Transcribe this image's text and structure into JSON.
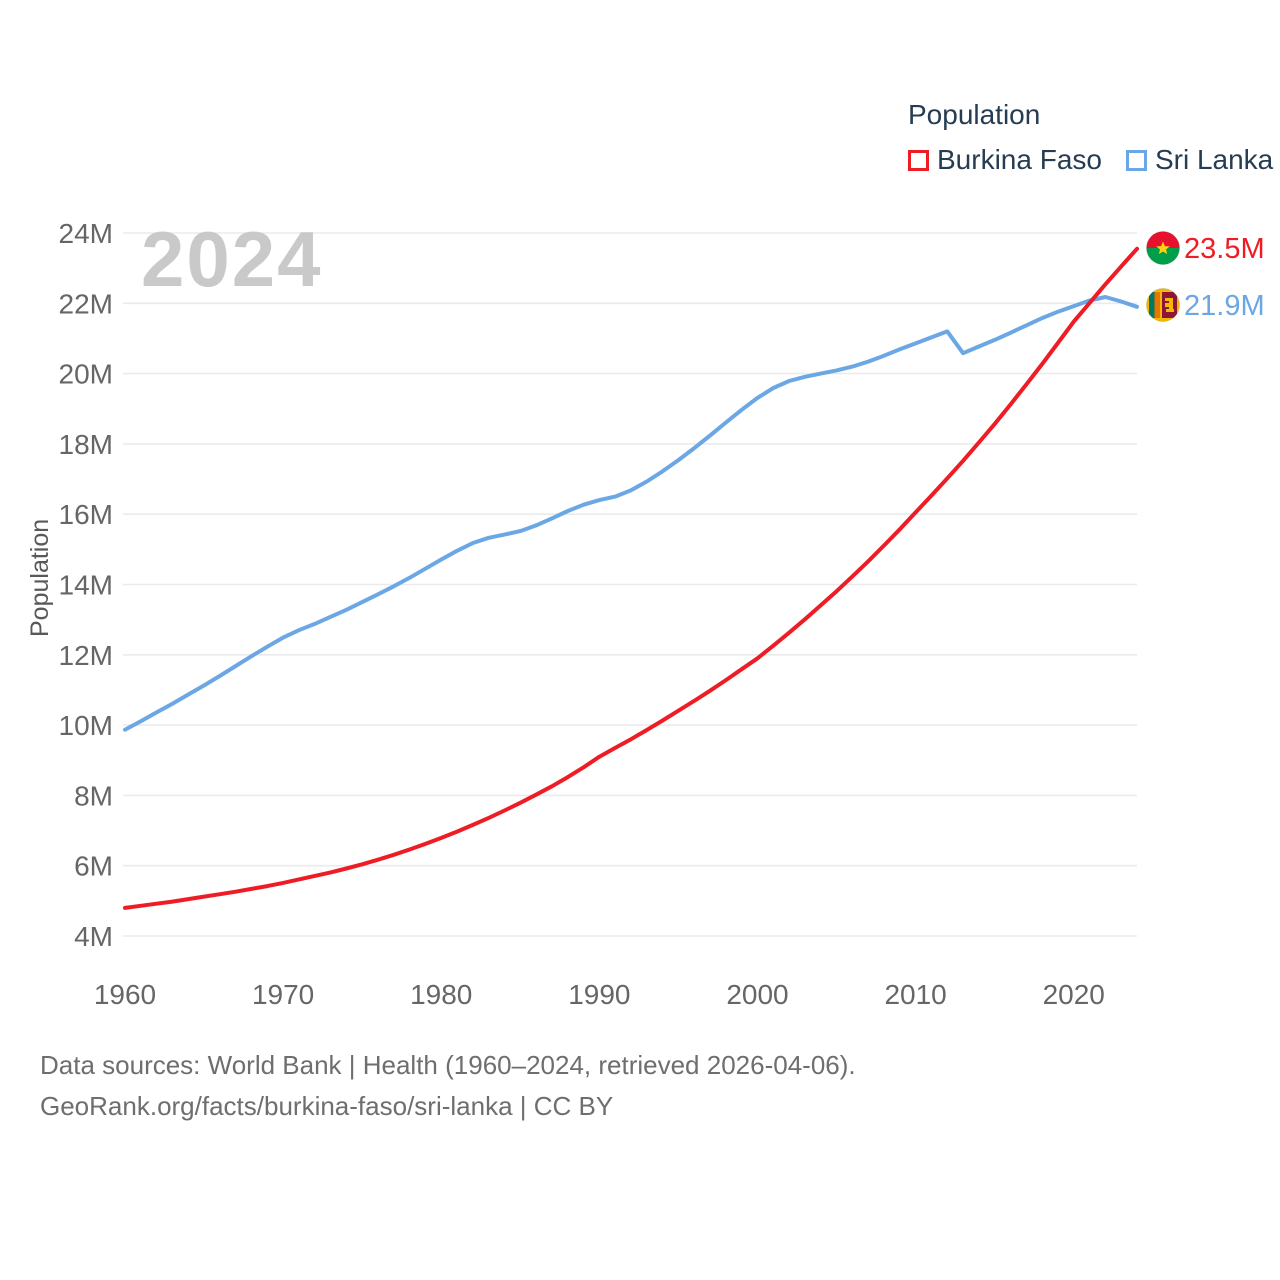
{
  "legend": {
    "title": "Population",
    "items": [
      {
        "label": "Burkina Faso",
        "color": "#ee1c25"
      },
      {
        "label": "Sri Lanka",
        "color": "#6ba7e5"
      }
    ]
  },
  "watermark_year": "2024",
  "y_axis_title": "Population",
  "end_labels": [
    {
      "series": "Burkina Faso",
      "value": "23.5M",
      "flag": "burkina-faso-flag"
    },
    {
      "series": "Sri Lanka",
      "value": "21.9M",
      "flag": "sri-lanka-flag"
    }
  ],
  "footer": {
    "line1": "Data sources: World Bank | Health (1960–2024, retrieved 2026-04-06).",
    "line2": "GeoRank.org/facts/burkina-faso/sri-lanka | CC BY"
  },
  "chart_data": {
    "type": "line",
    "title": "Population",
    "xlabel": "",
    "ylabel": "Population",
    "units": "millions",
    "xlim": [
      1960,
      2024
    ],
    "ylim": [
      4,
      24
    ],
    "grid": "horizontal",
    "legend_position": "top-right",
    "x_tick_values": [
      1960,
      1970,
      1980,
      1990,
      2000,
      2010,
      2020
    ],
    "x_tick_labels": [
      "1960",
      "1970",
      "1980",
      "1990",
      "2000",
      "2010",
      "2020"
    ],
    "y_tick_values": [
      4,
      6,
      8,
      10,
      12,
      14,
      16,
      18,
      20,
      22,
      24
    ],
    "y_tick_labels": [
      "4M",
      "6M",
      "8M",
      "10M",
      "12M",
      "14M",
      "16M",
      "18M",
      "20M",
      "22M",
      "24M"
    ],
    "x": [
      1960,
      1961,
      1962,
      1963,
      1964,
      1965,
      1966,
      1967,
      1968,
      1969,
      1970,
      1971,
      1972,
      1973,
      1974,
      1975,
      1976,
      1977,
      1978,
      1979,
      1980,
      1981,
      1982,
      1983,
      1984,
      1985,
      1986,
      1987,
      1988,
      1989,
      1990,
      1991,
      1992,
      1993,
      1994,
      1995,
      1996,
      1997,
      1998,
      1999,
      2000,
      2001,
      2002,
      2003,
      2004,
      2005,
      2006,
      2007,
      2008,
      2009,
      2010,
      2011,
      2012,
      2013,
      2014,
      2015,
      2016,
      2017,
      2018,
      2019,
      2020,
      2021,
      2022,
      2023,
      2024
    ],
    "series": [
      {
        "name": "Burkina Faso",
        "color": "#ee1c25",
        "end_value_label": "23.5M",
        "values": [
          4.8,
          4.86,
          4.92,
          4.98,
          5.05,
          5.12,
          5.19,
          5.26,
          5.34,
          5.42,
          5.51,
          5.61,
          5.71,
          5.81,
          5.92,
          6.04,
          6.17,
          6.31,
          6.46,
          6.62,
          6.79,
          6.97,
          7.16,
          7.36,
          7.57,
          7.79,
          8.02,
          8.26,
          8.52,
          8.8,
          9.1,
          9.35,
          9.6,
          9.86,
          10.13,
          10.41,
          10.69,
          10.98,
          11.28,
          11.59,
          11.9,
          12.26,
          12.63,
          13.01,
          13.41,
          13.81,
          14.23,
          14.66,
          15.11,
          15.57,
          16.05,
          16.53,
          17.02,
          17.52,
          18.04,
          18.57,
          19.12,
          19.69,
          20.27,
          20.87,
          21.48,
          22.01,
          22.54,
          23.05,
          23.55
        ]
      },
      {
        "name": "Sri Lanka",
        "color": "#6ba7e5",
        "end_value_label": "21.9M",
        "values": [
          9.87,
          10.11,
          10.36,
          10.61,
          10.87,
          11.13,
          11.4,
          11.68,
          11.96,
          12.23,
          12.49,
          12.7,
          12.88,
          13.08,
          13.28,
          13.5,
          13.72,
          13.95,
          14.19,
          14.45,
          14.71,
          14.96,
          15.18,
          15.33,
          15.42,
          15.52,
          15.68,
          15.88,
          16.09,
          16.27,
          16.4,
          16.5,
          16.68,
          16.93,
          17.22,
          17.54,
          17.88,
          18.24,
          18.61,
          18.97,
          19.31,
          19.59,
          19.79,
          19.91,
          20.0,
          20.09,
          20.2,
          20.34,
          20.51,
          20.69,
          20.86,
          21.03,
          21.2,
          20.58,
          20.77,
          20.96,
          21.16,
          21.37,
          21.58,
          21.76,
          21.92,
          22.08,
          22.18,
          22.05,
          21.9
        ]
      }
    ]
  }
}
